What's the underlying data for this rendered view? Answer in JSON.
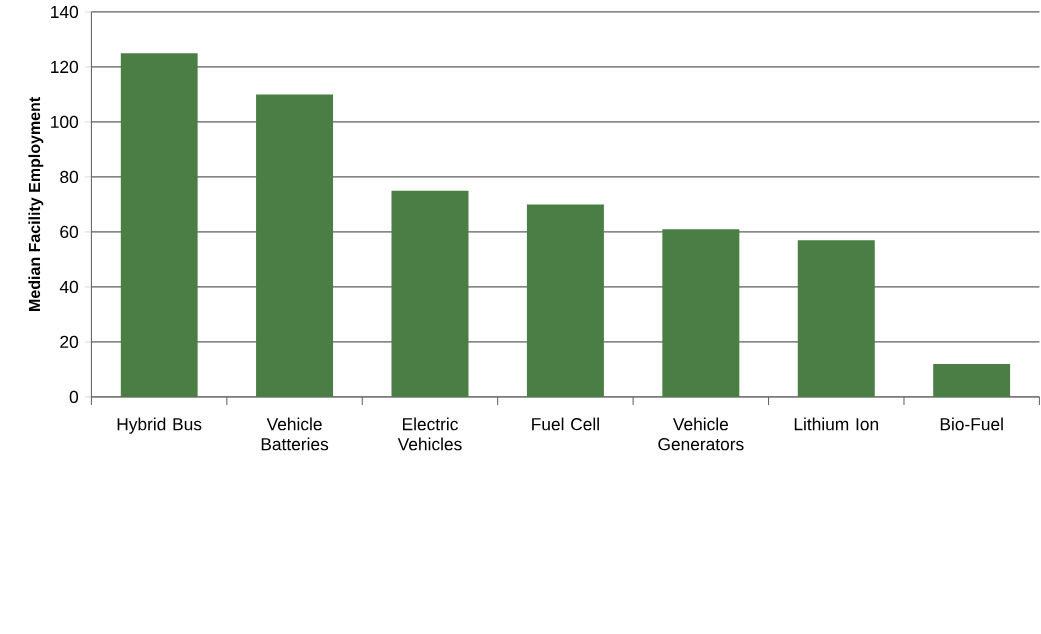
{
  "chart_data": {
    "type": "bar",
    "ylabel": "Median Facility Employment",
    "categories": [
      "Hybrid Bus",
      "Vehicle Batteries",
      "Electric Vehicles",
      "Fuel Cell",
      "Vehicle Generators",
      "Lithium Ion",
      "Bio-Fuel"
    ],
    "values": [
      125,
      110,
      75,
      70,
      61,
      57,
      12
    ],
    "color": "#4a7e45",
    "ylim": [
      0,
      140
    ],
    "yticks": [
      0,
      20,
      40,
      60,
      80,
      100,
      120,
      140
    ],
    "grid": "y"
  }
}
